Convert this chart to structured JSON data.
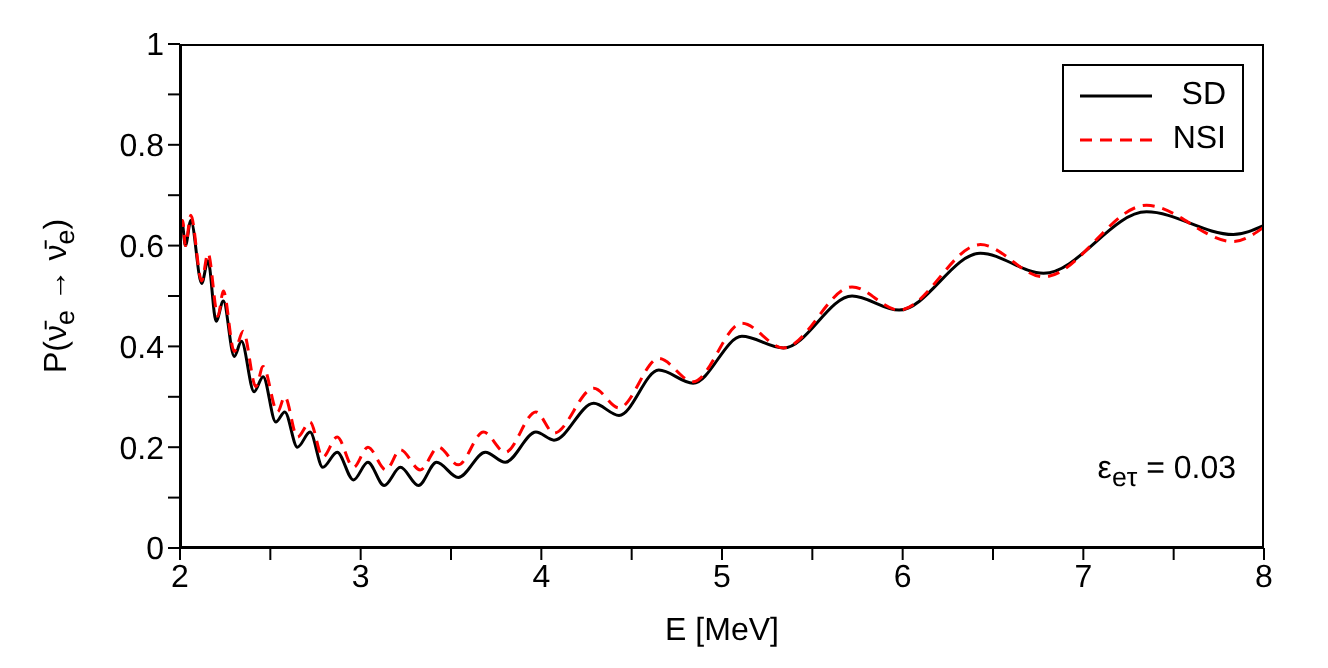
{
  "chart_data": {
    "type": "line",
    "xlabel": "E [MeV]",
    "ylabel": "P(ν̄$_{e}$ → ν̄$_{e}$)",
    "xlim": [
      2,
      8
    ],
    "xticks": [
      2,
      {
        "value": 2.5,
        "label": null
      },
      3,
      {
        "value": 3.5,
        "label": null
      },
      4,
      {
        "value": 4.5,
        "label": null
      },
      5,
      {
        "value": 5.5,
        "label": null
      },
      6,
      {
        "value": 6.5,
        "label": null
      },
      7,
      {
        "value": 7.5,
        "label": null
      },
      8
    ],
    "ylim": [
      0,
      1
    ],
    "yticks": [
      0,
      {
        "value": 0.1,
        "label": null
      },
      0.2,
      {
        "value": 0.3,
        "label": null
      },
      0.4,
      {
        "value": 0.5,
        "label": null
      },
      0.6,
      {
        "value": 0.7,
        "label": null
      },
      0.8,
      {
        "value": 0.9,
        "label": null
      },
      1
    ],
    "legend": "top right",
    "grid": false,
    "annotations": [
      "ε$_{eτ}$ = 0.03"
    ],
    "series": [
      {
        "name": "SD",
        "color": "#000000",
        "line_style": "solid",
        "x": [
          2.0,
          2.01,
          2.03,
          2.06,
          2.12,
          2.155,
          2.2,
          2.24,
          2.3,
          2.34,
          2.41,
          2.46,
          2.53,
          2.58,
          2.65,
          2.72,
          2.79,
          2.87,
          2.96,
          3.04,
          3.13,
          3.22,
          3.32,
          3.42,
          3.54,
          3.69,
          3.8,
          3.97,
          4.07,
          4.29,
          4.43,
          4.65,
          4.84,
          5.11,
          5.34,
          5.72,
          5.98,
          6.43,
          6.78,
          7.35,
          7.83,
          8.0
        ],
        "values": [
          0.62,
          0.65,
          0.6,
          0.65,
          0.525,
          0.57,
          0.45,
          0.49,
          0.38,
          0.41,
          0.31,
          0.34,
          0.25,
          0.27,
          0.2,
          0.23,
          0.16,
          0.19,
          0.135,
          0.17,
          0.124,
          0.16,
          0.124,
          0.17,
          0.14,
          0.19,
          0.17,
          0.23,
          0.214,
          0.287,
          0.263,
          0.353,
          0.327,
          0.42,
          0.397,
          0.5,
          0.472,
          0.585,
          0.545,
          0.667,
          0.622,
          0.64
        ]
      },
      {
        "name": "NSI",
        "color": "#ff0000",
        "line_style": "dashed",
        "x": [
          2.0,
          2.015,
          2.03,
          2.06,
          2.12,
          2.155,
          2.21,
          2.24,
          2.3,
          2.35,
          2.42,
          2.46,
          2.54,
          2.58,
          2.65,
          2.72,
          2.79,
          2.87,
          2.96,
          3.04,
          3.14,
          3.22,
          3.33,
          3.43,
          3.54,
          3.68,
          3.8,
          3.97,
          4.07,
          4.29,
          4.43,
          4.65,
          4.84,
          5.11,
          5.34,
          5.72,
          5.98,
          6.43,
          6.78,
          7.35,
          7.83,
          8.0
        ],
        "values": [
          0.6,
          0.65,
          0.6,
          0.66,
          0.53,
          0.585,
          0.46,
          0.51,
          0.39,
          0.43,
          0.32,
          0.36,
          0.27,
          0.3,
          0.22,
          0.25,
          0.18,
          0.22,
          0.16,
          0.2,
          0.155,
          0.195,
          0.155,
          0.2,
          0.165,
          0.23,
          0.19,
          0.27,
          0.228,
          0.317,
          0.278,
          0.376,
          0.33,
          0.446,
          0.397,
          0.518,
          0.472,
          0.602,
          0.538,
          0.68,
          0.608,
          0.637
        ]
      }
    ]
  }
}
